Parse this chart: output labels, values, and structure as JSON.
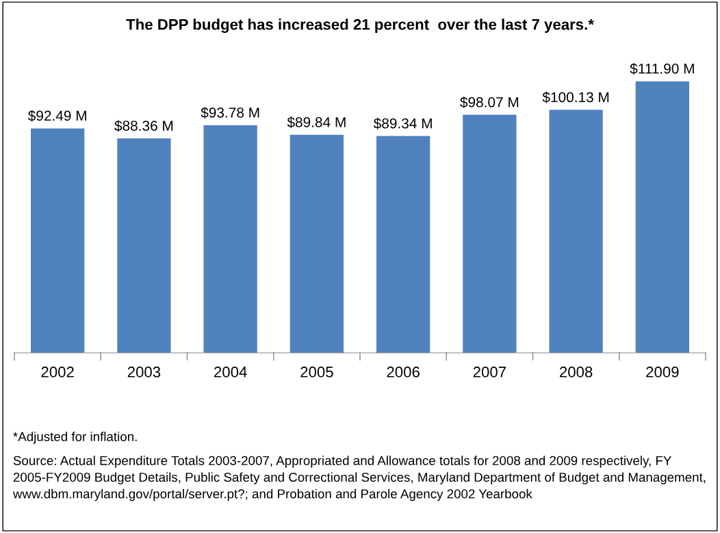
{
  "chart_data": {
    "type": "bar",
    "title": "The DPP budget has increased 21 percent  over the last 7 years.*",
    "categories": [
      "2002",
      "2003",
      "2004",
      "2005",
      "2006",
      "2007",
      "2008",
      "2009"
    ],
    "values": [
      92.49,
      88.36,
      93.78,
      89.84,
      89.34,
      98.07,
      100.13,
      111.9
    ],
    "value_labels": [
      "$92.49 M",
      "$88.36 M",
      "$93.78 M",
      "$89.84 M",
      "$89.34 M",
      "$98.07 M",
      "$100.13 M",
      "$111.90 M"
    ],
    "color": "#4f81bd",
    "tick_labels": "x",
    "legend": false,
    "annotations": [
      "*Adjusted for inflation.",
      "Source: Actual Expenditure Totals 2003-2007, Appropriated and Allowance totals for 2008 and 2009 respectively, FY 2005-FY2009 Budget Details, Public Safety and Correctional Services, Maryland Department of Budget and Management, www.dbm.maryland.gov/portal/server.pt?; and Probation and Parole Agency 2002 Yearbook"
    ]
  }
}
